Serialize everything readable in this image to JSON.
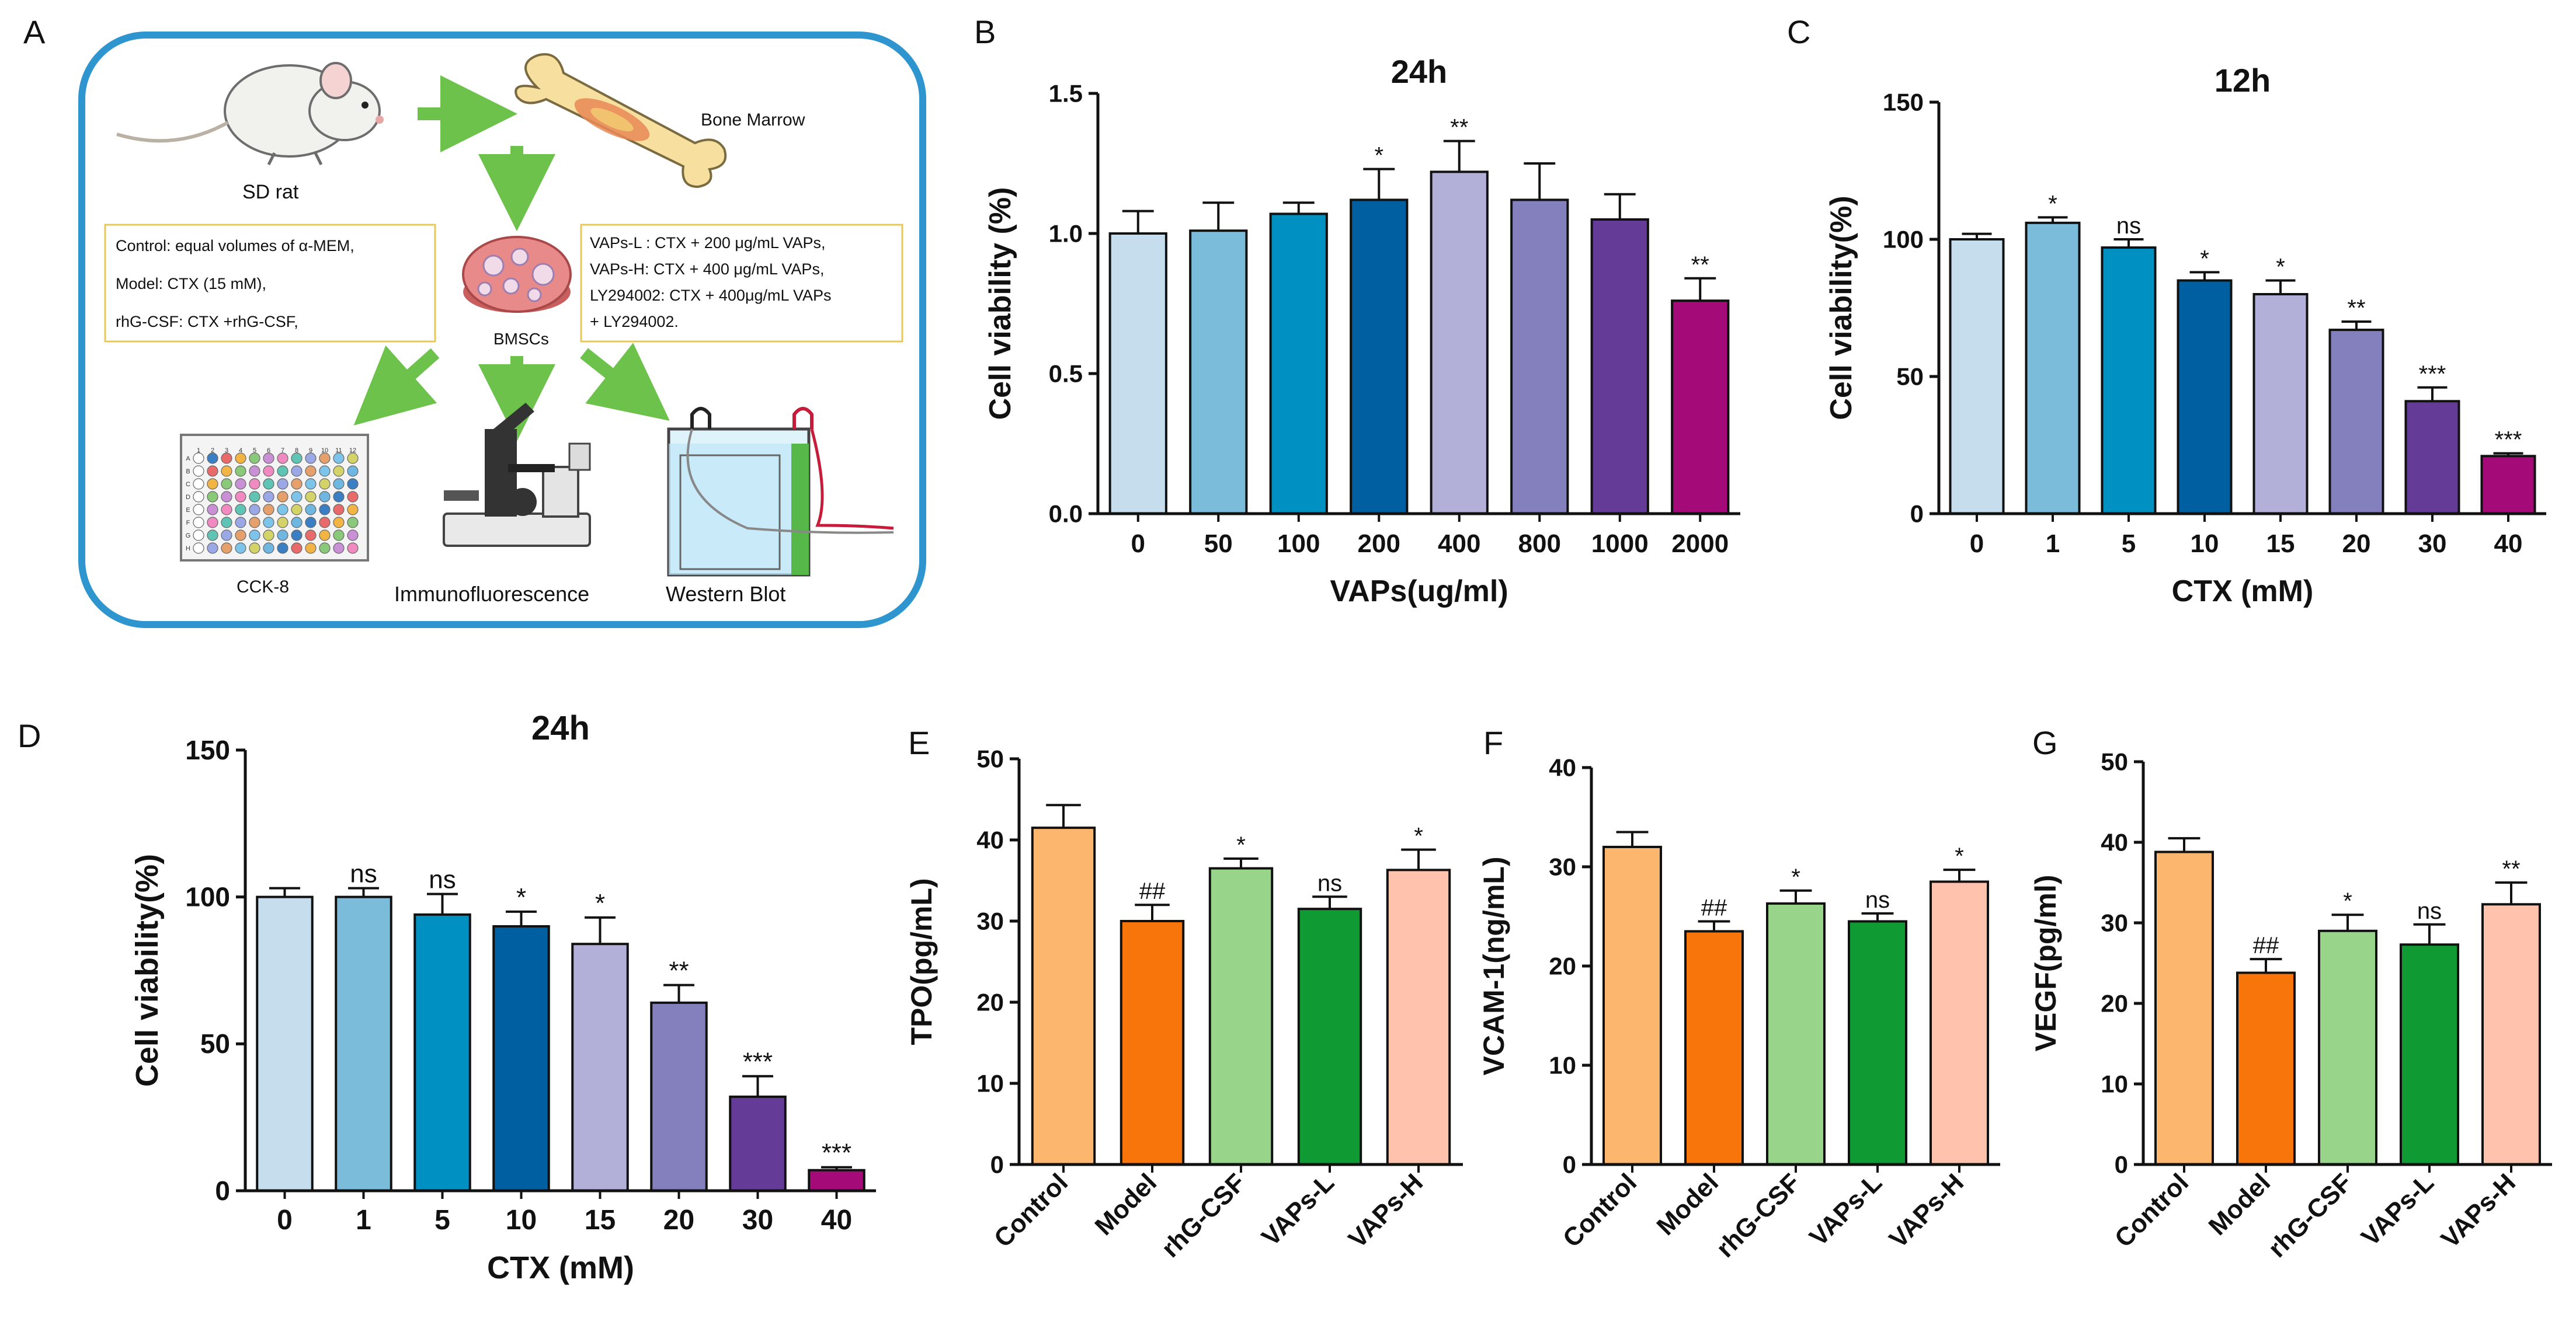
{
  "panel_letters": [
    "A",
    "B",
    "C",
    "D",
    "E",
    "F",
    "G"
  ],
  "panel_a": {
    "rat_label": "SD rat",
    "bone_label": "Bone Marrow",
    "cells_label": "BMSCs",
    "left_box": [
      "Control: equal volumes of α-MEM,",
      "Model: CTX (15 mM),",
      "rhG-CSF: CTX +rhG-CSF,"
    ],
    "right_box": [
      "VAPs-L : CTX + 200 μg/mL VAPs,",
      "VAPs-H:  CTX + 400 μg/mL VAPs,",
      "LY294002: CTX + 400μg/mL VAPs",
      "+ LY294002."
    ],
    "assays": [
      "CCK-8",
      "Immunofluorescence",
      "Western Blot"
    ],
    "plate_cols": [
      "1",
      "2",
      "3",
      "4",
      "5",
      "6",
      "7",
      "8",
      "9",
      "10",
      "11",
      "12"
    ],
    "plate_rows": [
      "A",
      "B",
      "C",
      "D",
      "E",
      "F",
      "G",
      "H"
    ],
    "colors": {
      "frame": "#2f95cf",
      "arrow": "#6cc24a",
      "box_border": "#e8c85a",
      "bone": "#f7dfa0",
      "dish": "#e88a8a"
    }
  },
  "chart_data": [
    {
      "panel": "B",
      "type": "bar",
      "title": "24h",
      "xlabel": "VAPs(ug/ml)",
      "ylabel": "Cell viability (%)",
      "categories": [
        "0",
        "50",
        "100",
        "200",
        "400",
        "800",
        "1000",
        "2000"
      ],
      "values": [
        1.0,
        1.01,
        1.07,
        1.12,
        1.22,
        1.12,
        1.05,
        0.76
      ],
      "errors": [
        0.08,
        0.1,
        0.04,
        0.11,
        0.11,
        0.13,
        0.09,
        0.08
      ],
      "annotations": [
        "",
        "",
        "",
        "*",
        "**",
        "",
        "",
        "**"
      ],
      "ylim": [
        0,
        1.5
      ],
      "yticks": [
        0.0,
        0.5,
        1.0,
        1.5
      ],
      "ytick_labels": [
        "0.0",
        "0.5",
        "1.0",
        "1.5"
      ],
      "colors": [
        "#c5dded",
        "#7bbcda",
        "#0090c2",
        "#005fa0",
        "#b2b0d8",
        "#8380bd",
        "#653b98",
        "#a50b78"
      ]
    },
    {
      "panel": "C",
      "type": "bar",
      "title": "12h",
      "xlabel": "CTX (mM)",
      "ylabel": "Cell viability(%)",
      "categories": [
        "0",
        "1",
        "5",
        "10",
        "15",
        "20",
        "30",
        "40"
      ],
      "values": [
        100,
        106,
        97,
        85,
        80,
        67,
        41,
        21
      ],
      "errors": [
        2,
        2,
        3,
        3,
        5,
        3,
        5,
        1
      ],
      "annotations": [
        "",
        "*",
        "ns",
        "*",
        "*",
        "**",
        "***",
        "***"
      ],
      "ylim": [
        0,
        150
      ],
      "yticks": [
        0,
        50,
        100,
        150
      ],
      "ytick_labels": [
        "0",
        "50",
        "100",
        "150"
      ],
      "colors": [
        "#c5dded",
        "#7bbcda",
        "#0090c2",
        "#005fa0",
        "#b2b0d8",
        "#8380bd",
        "#653b98",
        "#a50b78"
      ]
    },
    {
      "panel": "D",
      "type": "bar",
      "title": "24h",
      "xlabel": "CTX (mM)",
      "ylabel": "Cell viability(%)",
      "categories": [
        "0",
        "1",
        "5",
        "10",
        "15",
        "20",
        "30",
        "40"
      ],
      "values": [
        100,
        100,
        94,
        90,
        84,
        64,
        32,
        7
      ],
      "errors": [
        3,
        3,
        7,
        5,
        9,
        6,
        7,
        1
      ],
      "annotations": [
        "",
        "ns",
        "ns",
        "*",
        "*",
        "**",
        "***",
        "***"
      ],
      "ylim": [
        0,
        150
      ],
      "yticks": [
        0,
        50,
        100,
        150
      ],
      "ytick_labels": [
        "0",
        "50",
        "100",
        "150"
      ],
      "colors": [
        "#c5dded",
        "#7bbcda",
        "#0090c2",
        "#005fa0",
        "#b2b0d8",
        "#8380bd",
        "#653b98",
        "#a50b78"
      ]
    },
    {
      "panel": "E",
      "type": "bar",
      "title": "",
      "xlabel": "",
      "ylabel": "TPO(pg/mL)",
      "categories": [
        "Control",
        "Model",
        "rhG-CSF",
        "VAPs-L",
        "VAPs-H"
      ],
      "values": [
        41.5,
        30,
        36.5,
        31.5,
        36.3
      ],
      "errors": [
        2.8,
        2,
        1.2,
        1.5,
        2.5
      ],
      "annotations": [
        "",
        "##",
        "*",
        "ns",
        "*"
      ],
      "ylim": [
        0,
        50
      ],
      "yticks": [
        0,
        10,
        20,
        30,
        40,
        50
      ],
      "ytick_labels": [
        "0",
        "10",
        "20",
        "30",
        "40",
        "50"
      ],
      "colors": [
        "#fdb66d",
        "#f7750b",
        "#98d48a",
        "#0f9a33",
        "#ffc3ad"
      ]
    },
    {
      "panel": "F",
      "type": "bar",
      "title": "",
      "xlabel": "",
      "ylabel": "VCAM-1(ng/mL)",
      "categories": [
        "Control",
        "Model",
        "rhG-CSF",
        "VAPs-L",
        "VAPs-H"
      ],
      "values": [
        32,
        23.5,
        26.3,
        24.5,
        28.5
      ],
      "errors": [
        1.5,
        1,
        1.3,
        0.8,
        1.2
      ],
      "annotations": [
        "",
        "##",
        "*",
        "ns",
        "*"
      ],
      "ylim": [
        0,
        40
      ],
      "yticks": [
        0,
        10,
        20,
        30,
        40
      ],
      "ytick_labels": [
        "0",
        "10",
        "20",
        "30",
        "40"
      ],
      "colors": [
        "#fdb66d",
        "#f7750b",
        "#98d48a",
        "#0f9a33",
        "#ffc3ad"
      ]
    },
    {
      "panel": "G",
      "type": "bar",
      "title": "",
      "xlabel": "",
      "ylabel": "VEGF(pg/ml)",
      "categories": [
        "Control",
        "Model",
        "rhG-CSF",
        "VAPs-L",
        "VAPs-H"
      ],
      "values": [
        38.8,
        23.8,
        29,
        27.3,
        32.3
      ],
      "errors": [
        1.7,
        1.7,
        2,
        2.5,
        2.7
      ],
      "annotations": [
        "",
        "##",
        "*",
        "ns",
        "**"
      ],
      "ylim": [
        0,
        50
      ],
      "yticks": [
        0,
        10,
        20,
        30,
        40,
        50
      ],
      "ytick_labels": [
        "0",
        "10",
        "20",
        "30",
        "40",
        "50"
      ],
      "colors": [
        "#fdb66d",
        "#f7750b",
        "#98d48a",
        "#0f9a33",
        "#ffc3ad"
      ]
    }
  ]
}
